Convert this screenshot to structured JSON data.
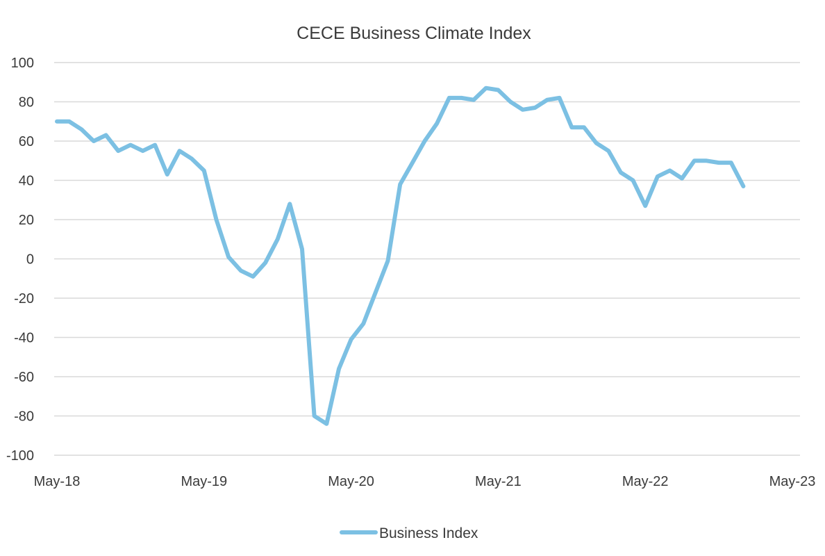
{
  "chart_data": {
    "type": "line",
    "title": "CECE Business Climate Index",
    "xlabel": "",
    "ylabel": "",
    "ylim": [
      -100,
      100
    ],
    "y_ticks": [
      "100",
      "80",
      "60",
      "40",
      "20",
      "0",
      "-20",
      "-40",
      "-60",
      "-80",
      "-100"
    ],
    "x_ticks": [
      "May-18",
      "May-19",
      "May-20",
      "May-21",
      "May-22",
      "May-23"
    ],
    "x_range": [
      "2018-05",
      "2023-05"
    ],
    "grid": true,
    "legend_position": "bottom",
    "series": [
      {
        "name": "Business Index",
        "color": "#7cc0e3",
        "points": [
          [
            "2018-05",
            70
          ],
          [
            "2018-06",
            70
          ],
          [
            "2018-07",
            66
          ],
          [
            "2018-08",
            60
          ],
          [
            "2018-09",
            63
          ],
          [
            "2018-10",
            55
          ],
          [
            "2018-11",
            58
          ],
          [
            "2018-12",
            55
          ],
          [
            "2019-01",
            58
          ],
          [
            "2019-02",
            43
          ],
          [
            "2019-03",
            55
          ],
          [
            "2019-04",
            51
          ],
          [
            "2019-05",
            45
          ],
          [
            "2019-06",
            20
          ],
          [
            "2019-07",
            1
          ],
          [
            "2019-08",
            -6
          ],
          [
            "2019-09",
            -9
          ],
          [
            "2019-10",
            -2
          ],
          [
            "2019-11",
            10
          ],
          [
            "2019-12",
            28
          ],
          [
            "2020-01",
            5
          ],
          [
            "2020-02",
            -80
          ],
          [
            "2020-03",
            -84
          ],
          [
            "2020-04",
            -56
          ],
          [
            "2020-05",
            -41
          ],
          [
            "2020-06",
            -33
          ],
          [
            "2020-07",
            -17
          ],
          [
            "2020-08",
            -1
          ],
          [
            "2020-09",
            38
          ],
          [
            "2020-10",
            49
          ],
          [
            "2020-11",
            60
          ],
          [
            "2020-12",
            69
          ],
          [
            "2021-01",
            82
          ],
          [
            "2021-02",
            82
          ],
          [
            "2021-03",
            81
          ],
          [
            "2021-04",
            87
          ],
          [
            "2021-05",
            86
          ],
          [
            "2021-06",
            80
          ],
          [
            "2021-07",
            76
          ],
          [
            "2021-08",
            77
          ],
          [
            "2021-09",
            81
          ],
          [
            "2021-10",
            82
          ],
          [
            "2021-11",
            67
          ],
          [
            "2021-12",
            67
          ],
          [
            "2022-01",
            59
          ],
          [
            "2022-02",
            55
          ],
          [
            "2022-03",
            44
          ],
          [
            "2022-04",
            40
          ],
          [
            "2022-05",
            27
          ],
          [
            "2022-06",
            42
          ],
          [
            "2022-07",
            45
          ],
          [
            "2022-08",
            41
          ],
          [
            "2022-09",
            50
          ],
          [
            "2022-10",
            50
          ],
          [
            "2022-11",
            49
          ],
          [
            "2022-12",
            49
          ],
          [
            "2023-01",
            37
          ]
        ]
      }
    ]
  }
}
